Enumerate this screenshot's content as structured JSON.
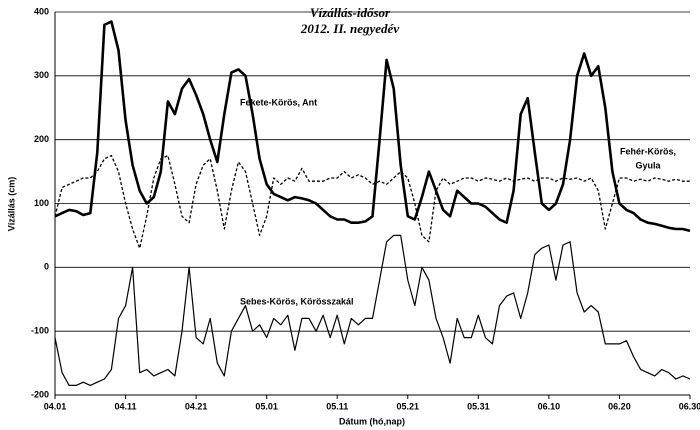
{
  "chart_data": {
    "type": "line",
    "title": [
      "Vízállás-idősor",
      "2012. II. negyedév"
    ],
    "x_label": "Dátum (hó,nap)",
    "y_label": "Vízállás (cm)",
    "categories": [
      "04.01",
      null,
      null,
      null,
      null,
      null,
      null,
      null,
      null,
      null,
      "04.11",
      null,
      null,
      null,
      null,
      null,
      null,
      null,
      null,
      null,
      "04.21",
      null,
      null,
      null,
      null,
      null,
      null,
      null,
      null,
      null,
      "05.01",
      null,
      null,
      null,
      null,
      null,
      null,
      null,
      null,
      null,
      "05.11",
      null,
      null,
      null,
      null,
      null,
      null,
      null,
      null,
      null,
      "05.21",
      null,
      null,
      null,
      null,
      null,
      null,
      null,
      null,
      null,
      "05.31",
      null,
      null,
      null,
      null,
      null,
      null,
      null,
      null,
      null,
      "06.10",
      null,
      null,
      null,
      null,
      null,
      null,
      null,
      null,
      null,
      "06.20",
      null,
      null,
      null,
      null,
      null,
      null,
      null,
      null,
      null,
      "06.30"
    ],
    "series": [
      {
        "color": "#000000",
        "style": "thick",
        "values": [
          80,
          85,
          90,
          88,
          82,
          85,
          180,
          380,
          385,
          340,
          230,
          160,
          120,
          100,
          110,
          150,
          260,
          240,
          280,
          295,
          270,
          240,
          200,
          165,
          240,
          305,
          310,
          300,
          240,
          170,
          130,
          115,
          110,
          105,
          110,
          108,
          105,
          100,
          90,
          80,
          75,
          75,
          70,
          70,
          72,
          80,
          200,
          325,
          280,
          160,
          80,
          75,
          110,
          150,
          120,
          90,
          80,
          120,
          110,
          100,
          100,
          95,
          85,
          75,
          70,
          120,
          240,
          265,
          180,
          100,
          90,
          100,
          130,
          200,
          300,
          335,
          300,
          315,
          250,
          150,
          100,
          90,
          85,
          75,
          70,
          68,
          65,
          62,
          60,
          60,
          57
        ]
      },
      {
        "color": "#000000",
        "style": "dashed",
        "values": [
          80,
          125,
          130,
          135,
          140,
          140,
          150,
          170,
          175,
          150,
          100,
          60,
          30,
          80,
          140,
          170,
          175,
          130,
          80,
          70,
          130,
          160,
          170,
          120,
          60,
          120,
          165,
          150,
          100,
          50,
          80,
          140,
          130,
          140,
          135,
          155,
          135,
          135,
          135,
          140,
          140,
          150,
          140,
          145,
          140,
          130,
          135,
          130,
          140,
          150,
          140,
          100,
          50,
          40,
          120,
          140,
          130,
          135,
          140,
          140,
          135,
          140,
          138,
          135,
          140,
          135,
          138,
          140,
          135,
          140,
          140,
          135,
          140,
          138,
          140,
          135,
          140,
          120,
          60,
          100,
          140,
          140,
          135,
          138,
          135,
          140,
          138,
          135,
          138,
          135,
          135
        ]
      },
      {
        "color": "#000000",
        "style": "thin",
        "values": [
          -110,
          -165,
          -185,
          -185,
          -180,
          -185,
          -180,
          -175,
          -160,
          -80,
          -60,
          0,
          -165,
          -160,
          -170,
          -165,
          -160,
          -170,
          -100,
          0,
          -110,
          -120,
          -80,
          -150,
          -170,
          -100,
          -80,
          -60,
          -100,
          -90,
          -110,
          -80,
          -90,
          -75,
          -130,
          -80,
          -80,
          -100,
          -75,
          -110,
          -75,
          -120,
          -80,
          -90,
          -80,
          -80,
          -20,
          40,
          50,
          50,
          -20,
          -60,
          0,
          -20,
          -80,
          -110,
          -150,
          -80,
          -110,
          -110,
          -75,
          -110,
          -120,
          -60,
          -45,
          -40,
          -80,
          -40,
          20,
          30,
          35,
          -20,
          35,
          40,
          -40,
          -70,
          -60,
          -70,
          -120,
          -120,
          -120,
          -115,
          -140,
          -160,
          -165,
          -170,
          -160,
          -165,
          -175,
          -170,
          -175
        ]
      }
    ],
    "annotations": [
      {
        "lines": [
          "Fekete-Körös, Ant"
        ]
      },
      {
        "lines": [
          "Fehér-Körös,",
          "Gyula"
        ]
      },
      {
        "lines": [
          "Sebes-Körös,  Körösszakál"
        ]
      }
    ],
    "ylim": [
      -200,
      400
    ],
    "yticks": [
      -200,
      -100,
      0,
      100,
      200,
      300,
      400
    ],
    "grid": true
  }
}
